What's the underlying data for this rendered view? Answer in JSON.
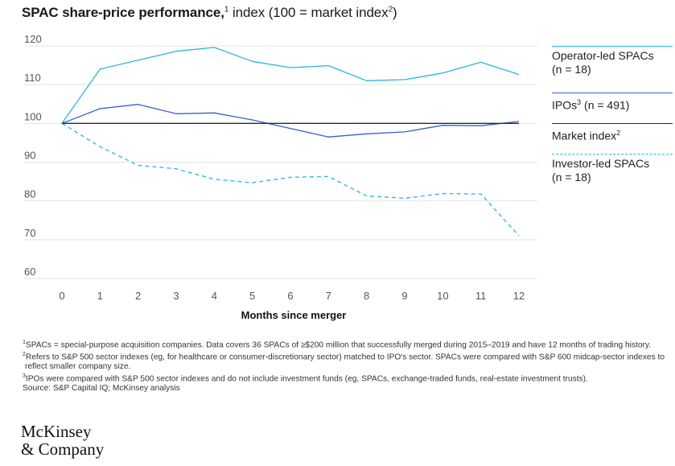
{
  "title": {
    "bold": "SPAC share-price performance,",
    "bold_sup": "1",
    "rest": " index (100 = market index",
    "rest_sup": "2",
    "close": ")"
  },
  "chart_data": {
    "type": "line",
    "x": [
      0,
      1,
      2,
      3,
      4,
      5,
      6,
      7,
      8,
      9,
      10,
      11,
      12
    ],
    "xlabel": "Months since merger",
    "ylim": [
      60,
      120
    ],
    "yticks": [
      60,
      70,
      80,
      90,
      100,
      110,
      120
    ],
    "grid": "horizontal",
    "legend_position": "right",
    "series": [
      {
        "name": "Operator-led SPACs (n = 18)",
        "color": "#29b6e0",
        "dashed": false,
        "values": [
          100,
          114,
          116.3,
          118.6,
          119.6,
          116,
          114.4,
          114.9,
          111,
          111.3,
          113,
          115.8,
          112.6
        ]
      },
      {
        "name": "IPOs (n = 491)",
        "color": "#3a5fd1",
        "dashed": false,
        "values": [
          100,
          103.8,
          104.9,
          102.5,
          102.7,
          100.9,
          98.7,
          96.5,
          97.3,
          97.8,
          99.5,
          99.4,
          100.5
        ]
      },
      {
        "name": "Market index",
        "color": "#1e2d3b",
        "dashed": false,
        "values": [
          100,
          100,
          100,
          100,
          100,
          100,
          100,
          100,
          100,
          100,
          100,
          100,
          100
        ]
      },
      {
        "name": "Investor-led SPACs (n = 18)",
        "color": "#29b6e0",
        "dashed": true,
        "values": [
          100,
          94,
          89.2,
          88.3,
          85.6,
          84.7,
          86.1,
          86.3,
          81.3,
          80.7,
          81.9,
          81.8,
          71
        ]
      }
    ]
  },
  "legend": [
    {
      "line_color": "#29b6e0",
      "dashed": false,
      "label_line1": "Operator-led SPACs",
      "label_line2": "(n = 18)"
    },
    {
      "line_color": "#3a5fd1",
      "dashed": false,
      "label_pre": "IPOs",
      "label_sup": "3",
      "label_post": " (n = 491)"
    },
    {
      "line_color": "#1e2d3b",
      "dashed": false,
      "label_pre": "Market index",
      "label_sup": "2"
    },
    {
      "line_color": "#29b6e0",
      "dashed": true,
      "label_line1": "Investor-led SPACs",
      "label_line2": "(n = 18)"
    }
  ],
  "footnotes": [
    {
      "sup": "1",
      "text": "SPACs = special-purpose acquisition companies. Data covers 36 SPACs of ≥$200 million that successfully merged during 2015–2019 and have 12 months of trading history."
    },
    {
      "sup": "2",
      "text": "Refers to S&P 500 sector indexes (eg, for healthcare or consumer-discretionary sector) matched to IPO's sector. SPACs were compared with S&P 600 midcap-sector indexes to reflect smaller company size."
    },
    {
      "sup": "3",
      "text": "IPOs were compared with S&P 500 sector indexes and do not include investment funds (eg, SPACs, exchange-traded funds, real-estate investment trusts)."
    },
    {
      "sup": "",
      "text": "Source: S&P Capital IQ; McKinsey analysis"
    }
  ],
  "logo": {
    "line1": "McKinsey",
    "line2": "& Company"
  }
}
